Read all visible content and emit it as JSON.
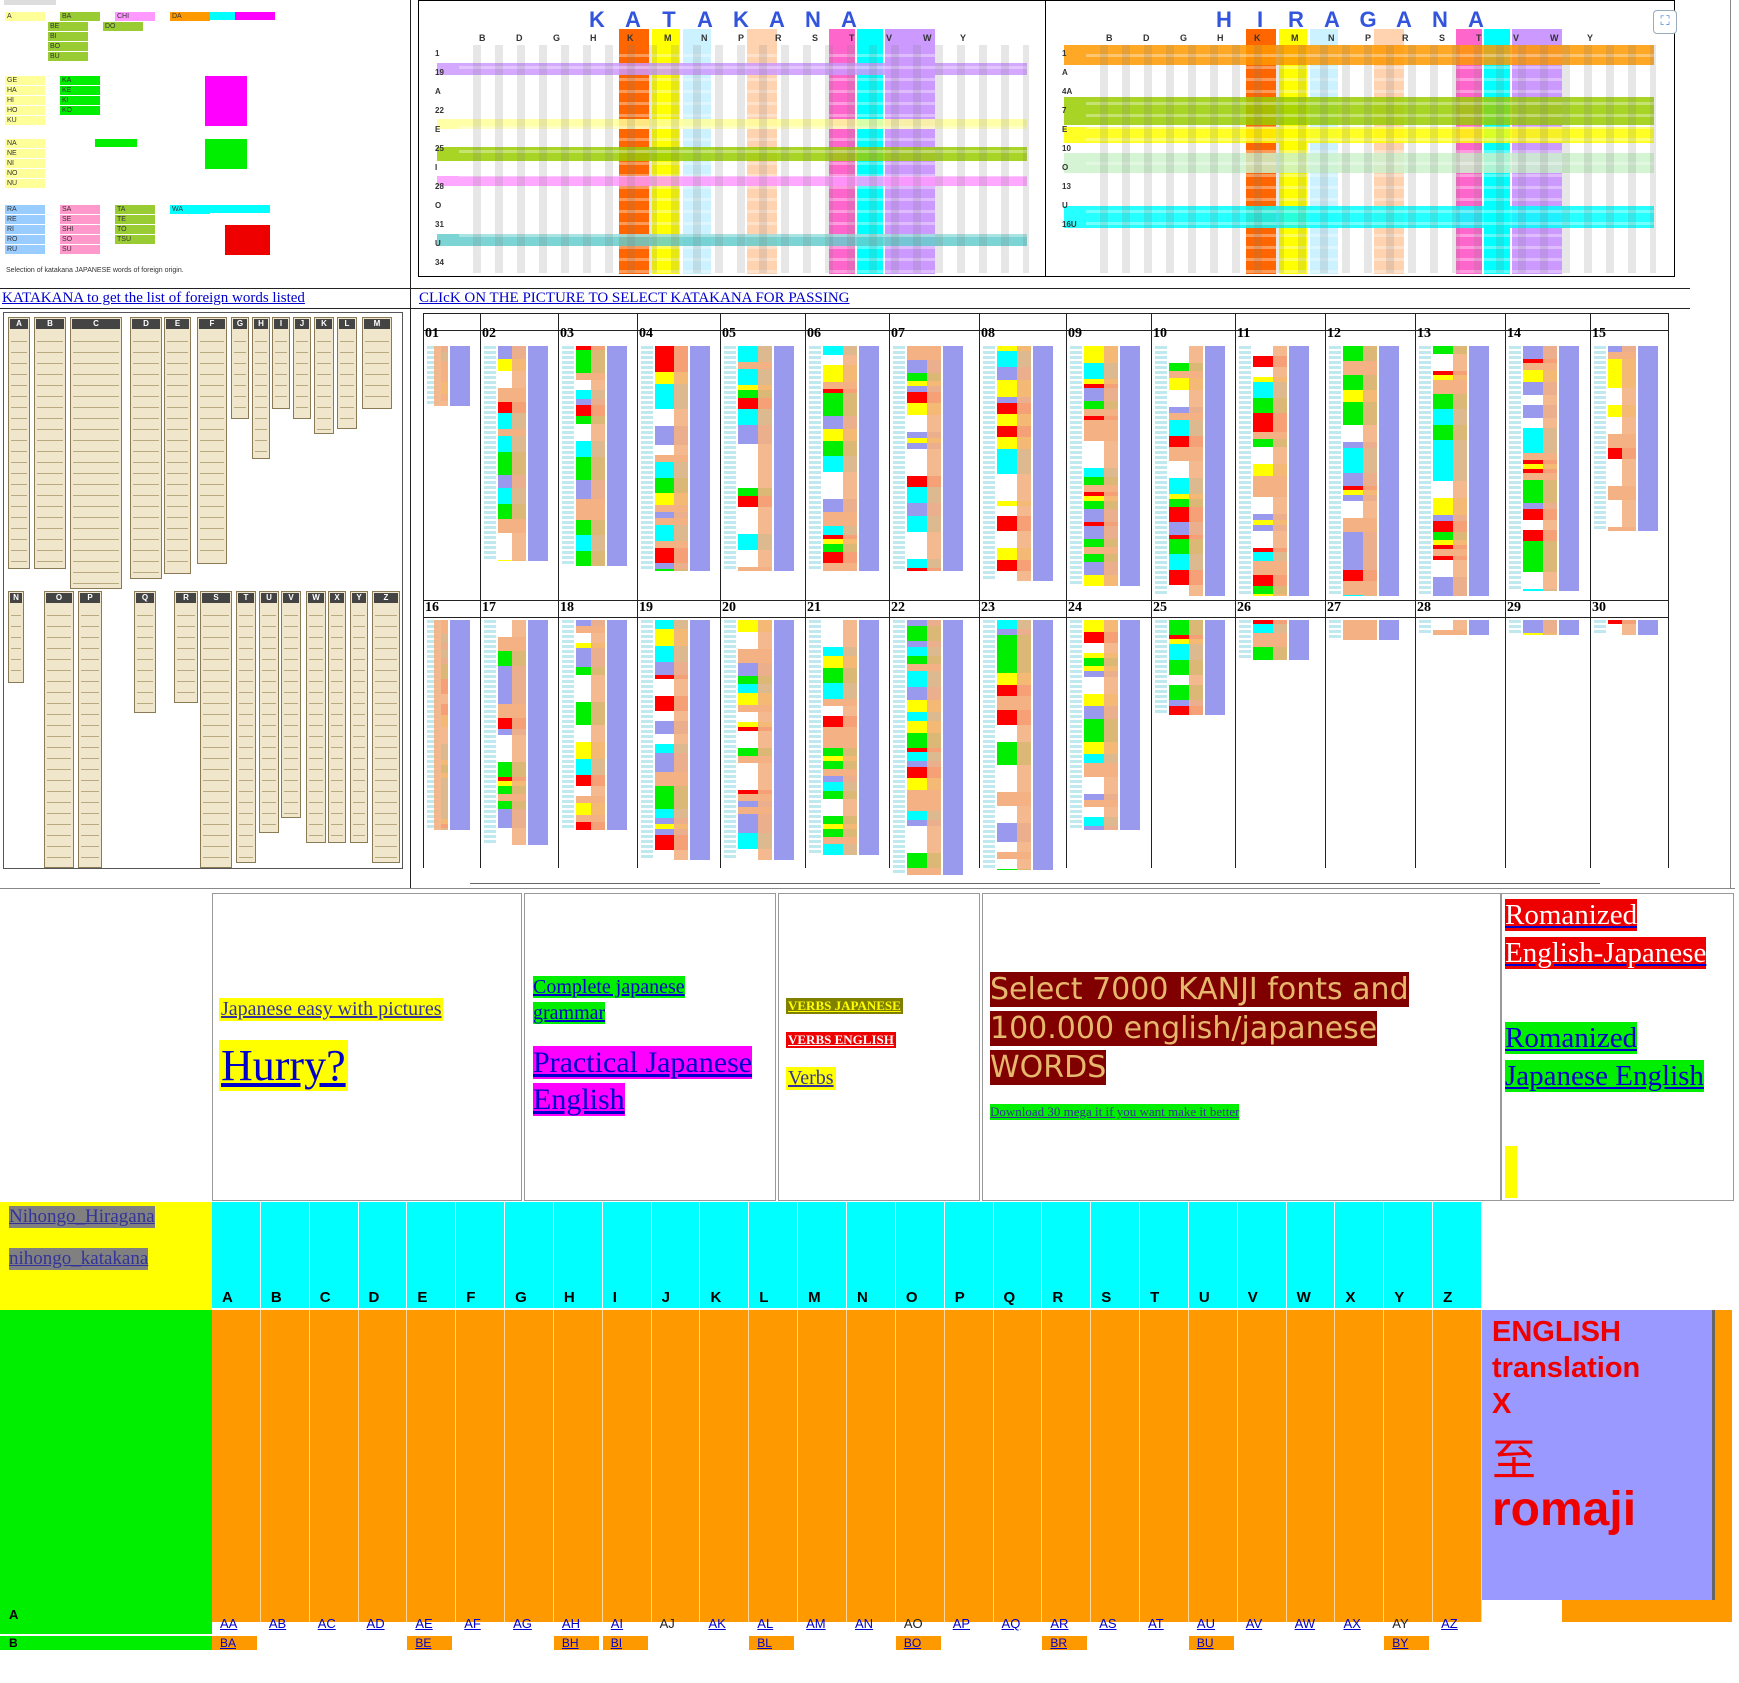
{
  "left_thumb": {
    "rows": [
      [
        "A",
        "BA",
        "CHI",
        "DA"
      ],
      [
        "BE",
        "DO"
      ],
      [
        "BI"
      ],
      [
        "BO"
      ],
      [
        "BU"
      ],
      [
        "GE",
        "KA"
      ],
      [
        "HA",
        "KE"
      ],
      [
        "HI",
        "KI"
      ],
      [
        "HO",
        "KO"
      ],
      [
        "KU"
      ],
      [
        "NA"
      ],
      [
        "NE"
      ],
      [
        "NI"
      ],
      [
        "NO"
      ],
      [
        "NU"
      ],
      [
        "RA",
        "SA",
        "TA",
        "WA"
      ],
      [
        "RE",
        "SE",
        "TE"
      ],
      [
        "RI",
        "SHI",
        "TO"
      ],
      [
        "RO",
        "SO",
        "TSU"
      ],
      [
        "RU",
        "SU"
      ]
    ],
    "caption": "Selection of katakana  JAPANESE  words of foreign origin."
  },
  "katakana_title": [
    "K",
    "A",
    "T",
    "A",
    "K",
    "A",
    "N",
    "A"
  ],
  "hiragana_title": [
    "H",
    "I",
    "R",
    "A",
    "G",
    "A",
    "N",
    "A"
  ],
  "kana_headers": [
    "B",
    "D",
    "G",
    "H",
    "K",
    "M",
    "N",
    "P",
    "R",
    "S",
    "T",
    "V",
    "W",
    "Y"
  ],
  "katakana_rows": [
    "1",
    "19",
    "A",
    "22",
    "E",
    "25",
    "I",
    "28",
    "O",
    "31",
    "U",
    "34"
  ],
  "hiragana_rows": [
    "1",
    "A",
    "4A",
    "7",
    "E",
    "10",
    "O",
    "13",
    "U",
    "16U"
  ],
  "links": {
    "katakana_list": "KATAKANA to get the list of foreign words listed",
    "click_picture": "CLIcK ON THE PICTURE TO SELECT KATAKANA FOR PASSING"
  },
  "kanji_columns_top": [
    "A",
    "B",
    "C",
    "D",
    "E",
    "F",
    "G",
    "H",
    "I",
    "J",
    "K",
    "L",
    "M"
  ],
  "kanji_columns_bottom": [
    "N",
    "O",
    "P",
    "Q",
    "R",
    "S",
    "T",
    "U",
    "V",
    "W",
    "X",
    "Y",
    "Z"
  ],
  "grid_numbers_row1": [
    "01",
    "02",
    "03",
    "04",
    "05",
    "06",
    "07",
    "08",
    "09",
    "10",
    "11",
    "12",
    "13",
    "14",
    "15"
  ],
  "grid_numbers_row2": [
    "16",
    "17",
    "18",
    "19",
    "20",
    "21",
    "22",
    "23",
    "24",
    "25",
    "26",
    "27",
    "28",
    "29",
    "30"
  ],
  "link_table": {
    "easy_pictures": "Japanese easy with pictures",
    "hurry": "Hurry?",
    "complete_grammar": "Complete japanese grammar",
    "practical": "Practical Japanese English",
    "verbs_japanese": "VERBS JAPANESE",
    "verbs_english": "VERBS ENGLISH",
    "verbs": "Verbs",
    "select_kanji": "Select 7000 KANJI fonts and 100.000 english/japanese WORDS",
    "download": "Download 30 mega it if you want make it better",
    "romanized_ej": "Romanized English-Japanese",
    "romanized_je": "Romanized Japanese English"
  },
  "nav": {
    "hiragana": "Nihongo_Hiragana",
    "katakana": "nihongo_katakana"
  },
  "letters": [
    "A",
    "B",
    "C",
    "D",
    "E",
    "F",
    "G",
    "H",
    "I",
    "J",
    "K",
    "L",
    "M",
    "N",
    "O",
    "P",
    "Q",
    "R",
    "S",
    "T",
    "U",
    "V",
    "W",
    "X",
    "Y",
    "Z"
  ],
  "row_a_label": "A",
  "row_b_label": "B",
  "row_a": [
    "AA",
    "AB",
    "AC",
    "AD",
    "AE",
    "AF",
    "AG",
    "AH",
    "AI",
    "AJ",
    "AK",
    "AL",
    "AM",
    "AN",
    "AO",
    "AP",
    "AQ",
    "AR",
    "AS",
    "AT",
    "AU",
    "AV",
    "AW",
    "AX",
    "AY",
    "AZ"
  ],
  "row_a_plain": [
    "AJ",
    "AO",
    "AY"
  ],
  "row_b": [
    {
      "col": 0,
      "text": "BA"
    },
    {
      "col": 4,
      "text": "BE"
    },
    {
      "col": 7,
      "text": "BH"
    },
    {
      "col": 8,
      "text": "BI"
    },
    {
      "col": 11,
      "text": "BL"
    },
    {
      "col": 14,
      "text": "BO"
    },
    {
      "col": 17,
      "text": "BR"
    },
    {
      "col": 20,
      "text": "BU"
    },
    {
      "col": 24,
      "text": "BY"
    }
  ],
  "translation": {
    "line1": "ENGLISH",
    "line2": "translation",
    "line3": "X",
    "line4": "至",
    "line5": "romaji"
  },
  "colors": {
    "cyan": "#00ffff",
    "orange": "#ff9900",
    "green": "#00ee00",
    "yellow": "#ffff00",
    "lavender": "#9999ff",
    "dark_red": "#800000",
    "red": "#ee0000",
    "magenta": "#ff00ff"
  }
}
